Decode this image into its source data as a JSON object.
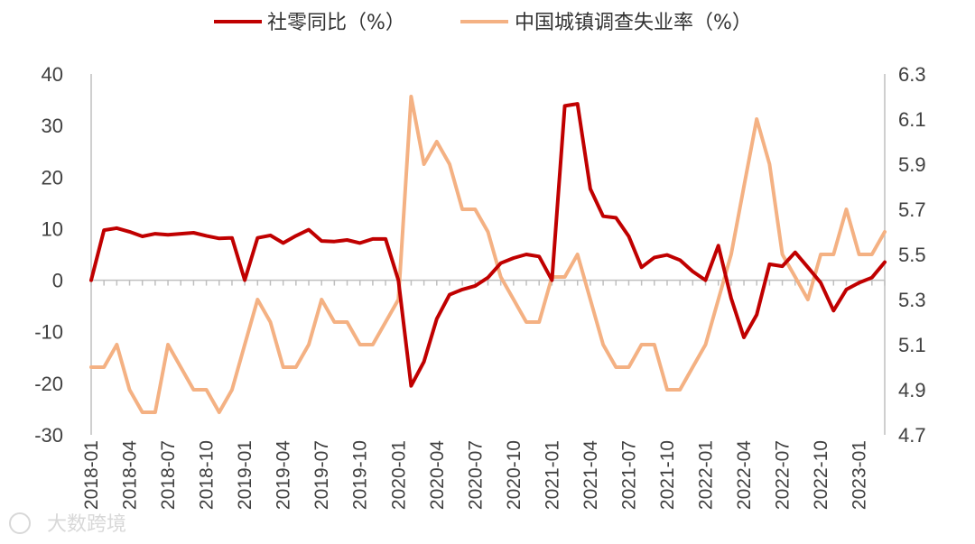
{
  "chart_data": {
    "type": "line",
    "title": "",
    "categories": [
      "2018-01",
      "2018-02",
      "2018-03",
      "2018-04",
      "2018-05",
      "2018-06",
      "2018-07",
      "2018-08",
      "2018-09",
      "2018-10",
      "2018-11",
      "2018-12",
      "2019-01",
      "2019-02",
      "2019-03",
      "2019-04",
      "2019-05",
      "2019-06",
      "2019-07",
      "2019-08",
      "2019-09",
      "2019-10",
      "2019-11",
      "2019-12",
      "2020-01",
      "2020-02",
      "2020-03",
      "2020-04",
      "2020-05",
      "2020-06",
      "2020-07",
      "2020-08",
      "2020-09",
      "2020-10",
      "2020-11",
      "2020-12",
      "2021-01",
      "2021-02",
      "2021-03",
      "2021-04",
      "2021-05",
      "2021-06",
      "2021-07",
      "2021-08",
      "2021-09",
      "2021-10",
      "2021-11",
      "2021-12",
      "2022-01",
      "2022-02",
      "2022-03",
      "2022-04",
      "2022-05",
      "2022-06",
      "2022-07",
      "2022-08",
      "2022-09",
      "2022-10",
      "2022-11",
      "2022-12",
      "2023-01",
      "2023-02",
      "2023-03"
    ],
    "xtick_labels": [
      "2018-01",
      "2018-04",
      "2018-07",
      "2018-10",
      "2019-01",
      "2019-04",
      "2019-07",
      "2019-10",
      "2020-01",
      "2020-04",
      "2020-07",
      "2020-10",
      "2021-01",
      "2021-04",
      "2021-07",
      "2021-10",
      "2022-01",
      "2022-04",
      "2022-07",
      "2022-10",
      "2023-01"
    ],
    "series": [
      {
        "name": "社零同比（%）",
        "axis": "left",
        "color": "#c00000",
        "values": [
          0,
          9.7,
          10.1,
          9.4,
          8.5,
          9.0,
          8.8,
          9.0,
          9.2,
          8.6,
          8.1,
          8.2,
          0,
          8.2,
          8.7,
          7.2,
          8.6,
          9.8,
          7.6,
          7.5,
          7.8,
          7.2,
          8.0,
          8.0,
          0,
          -20.5,
          -15.8,
          -7.5,
          -2.8,
          -1.8,
          -1.1,
          0.5,
          3.3,
          4.3,
          5.0,
          4.6,
          0,
          33.8,
          34.2,
          17.7,
          12.4,
          12.1,
          8.5,
          2.5,
          4.4,
          4.9,
          3.9,
          1.7,
          0,
          6.7,
          -3.5,
          -11.1,
          -6.7,
          3.1,
          2.7,
          5.4,
          2.5,
          -0.5,
          -5.9,
          -1.8,
          -0.5,
          0.5,
          3.5
        ]
      },
      {
        "name": "中国城镇调查失业率（%）",
        "axis": "right",
        "color": "#f4b183",
        "values": [
          5.0,
          5.0,
          5.1,
          4.9,
          4.8,
          4.8,
          5.1,
          5.0,
          4.9,
          4.9,
          4.8,
          4.9,
          5.1,
          5.3,
          5.2,
          5.0,
          5.0,
          5.1,
          5.3,
          5.2,
          5.2,
          5.1,
          5.1,
          5.2,
          5.3,
          6.2,
          5.9,
          6.0,
          5.9,
          5.7,
          5.7,
          5.6,
          5.4,
          5.3,
          5.2,
          5.2,
          5.4,
          5.4,
          5.5,
          5.3,
          5.1,
          5.0,
          5.0,
          5.1,
          5.1,
          4.9,
          4.9,
          5.0,
          5.1,
          5.3,
          5.5,
          5.8,
          6.1,
          5.9,
          5.5,
          5.4,
          5.3,
          5.5,
          5.5,
          5.7,
          5.5,
          5.5,
          5.6
        ]
      }
    ],
    "y_left": {
      "ylim": [
        -30,
        40
      ],
      "ticks": [
        "40",
        "30",
        "20",
        "10",
        "0",
        "-10",
        "-20",
        "-30"
      ]
    },
    "y_right": {
      "ylim": [
        4.7,
        6.3
      ],
      "ticks": [
        "6.3",
        "6.1",
        "5.9",
        "5.7",
        "5.5",
        "5.3",
        "5.1",
        "4.9",
        "4.7"
      ]
    },
    "legend": {
      "placement": "top-center"
    },
    "grid": false
  },
  "legend": {
    "item1": "社零同比（%）",
    "item2": "中国城镇调查失业率（%）"
  },
  "watermark": {
    "text": "大数跨境"
  }
}
